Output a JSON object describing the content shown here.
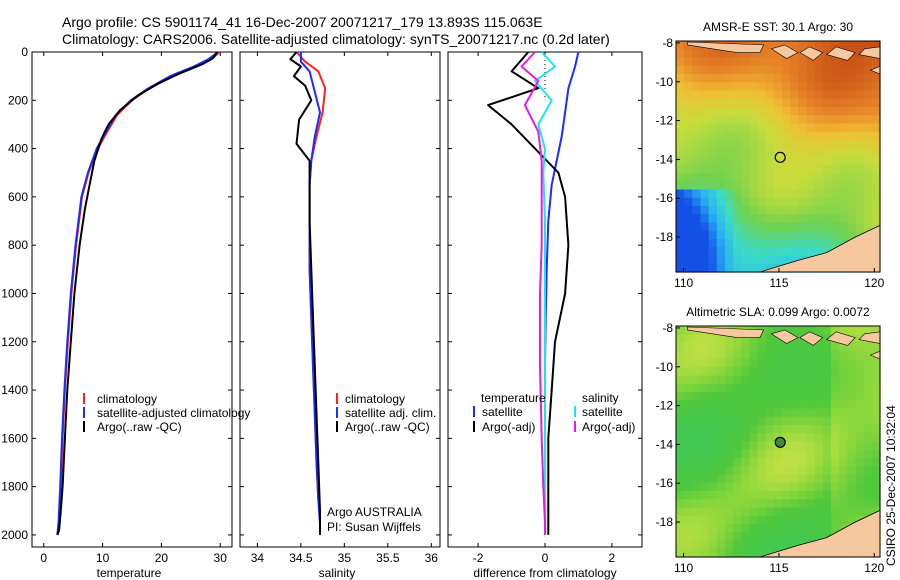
{
  "header": {
    "line1": "Argo profile: CS 5901174_41 16-Dec-2007 20071217_179 13.893S 115.063E",
    "line2": "Climatology: CARS2006. Satellite-adjusted climatology: synTS_20071217.nc (0.2d later)"
  },
  "colors": {
    "climatology": "#ff2020",
    "satellite": "#1a2cff",
    "argo": "#000000",
    "temp_satellite": "#1a2cff",
    "sal_satellite": "#19e6e6",
    "sal_argo": "#e619e6",
    "land": "#f5c8a0"
  },
  "chart_data": [
    {
      "type": "line",
      "name": "temperature profile",
      "xlabel": "temperature",
      "xlim": [
        -2,
        32
      ],
      "ylim": [
        2050,
        0
      ],
      "xticks": [
        "0",
        "10",
        "20",
        "30"
      ],
      "xtick_values": [
        0,
        10,
        20,
        30
      ],
      "yticks": [
        "0",
        "200",
        "400",
        "600",
        "800",
        "1000",
        "1200",
        "1400",
        "1600",
        "1800",
        "2000"
      ],
      "ytick_values": [
        0,
        200,
        400,
        600,
        800,
        1000,
        1200,
        1400,
        1600,
        1800,
        2000
      ],
      "legend": [
        "climatology",
        "satellite-adjusted climatology",
        "Argo(..raw -QC)"
      ],
      "series": [
        {
          "name": "climatology",
          "color": "#ff2020",
          "x": [
            29.9,
            28.5,
            26.0,
            22.0,
            18.0,
            15.0,
            12.5,
            10.8,
            9.2,
            7.6,
            6.5,
            5.5,
            4.7,
            4.1,
            3.6,
            3.2,
            2.9,
            2.6,
            2.4
          ],
          "y": [
            0,
            30,
            60,
            100,
            150,
            200,
            260,
            330,
            400,
            500,
            600,
            800,
            1000,
            1200,
            1400,
            1600,
            1800,
            1950,
            2000
          ]
        },
        {
          "name": "satellite",
          "color": "#1a2cff",
          "x": [
            29.6,
            28.0,
            25.5,
            21.5,
            17.8,
            14.8,
            12.3,
            10.6,
            9.0,
            7.5,
            6.4,
            5.4,
            4.6,
            4.0,
            3.5,
            3.1,
            2.8,
            2.5,
            2.3
          ],
          "y": [
            0,
            30,
            60,
            100,
            150,
            200,
            260,
            330,
            400,
            500,
            600,
            800,
            1000,
            1200,
            1400,
            1600,
            1800,
            1950,
            2000
          ]
        },
        {
          "name": "Argo",
          "color": "#000000",
          "x": [
            29.5,
            28.8,
            27.0,
            23.0,
            19.5,
            16.0,
            13.0,
            11.0,
            9.8,
            8.6,
            7.8,
            7.0,
            6.1,
            5.2,
            4.6,
            4.0,
            3.6,
            3.2,
            2.9,
            2.6,
            2.3
          ],
          "y": [
            0,
            25,
            50,
            90,
            130,
            180,
            240,
            300,
            360,
            450,
            550,
            650,
            800,
            1000,
            1200,
            1400,
            1600,
            1800,
            1900,
            1980,
            2000
          ]
        }
      ]
    },
    {
      "type": "line",
      "name": "salinity profile",
      "xlabel": "salinity",
      "xlim": [
        33.8,
        36.1
      ],
      "ylim": [
        2050,
        0
      ],
      "xticks": [
        "34",
        "34.5",
        "35",
        "35.5",
        "36"
      ],
      "xtick_values": [
        34,
        34.5,
        35,
        35.5,
        36
      ],
      "legend": [
        "climatology",
        "satellite adj. clim.",
        "Argo(..raw -QC)"
      ],
      "annotations": [
        "Argo AUSTRALIA",
        "PI: Susan Wijffels"
      ],
      "series": [
        {
          "name": "climatology",
          "color": "#ff2020",
          "x": [
            34.45,
            34.55,
            34.7,
            34.78,
            34.75,
            34.68,
            34.62,
            34.6,
            34.6,
            34.6,
            34.62,
            34.64,
            34.66,
            34.68,
            34.7,
            34.72,
            34.72
          ],
          "y": [
            0,
            40,
            80,
            150,
            250,
            350,
            450,
            550,
            700,
            900,
            1100,
            1300,
            1500,
            1700,
            1850,
            1950,
            2000
          ]
        },
        {
          "name": "satellite",
          "color": "#1a2cff",
          "x": [
            34.5,
            34.5,
            34.6,
            34.65,
            34.72,
            34.66,
            34.62,
            34.6,
            34.6,
            34.6,
            34.62,
            34.64,
            34.66,
            34.68,
            34.7,
            34.72,
            34.72
          ],
          "y": [
            0,
            40,
            80,
            150,
            250,
            350,
            450,
            550,
            700,
            900,
            1100,
            1300,
            1500,
            1700,
            1850,
            1950,
            2000
          ]
        },
        {
          "name": "Argo",
          "color": "#000000",
          "x": [
            34.45,
            34.38,
            34.5,
            34.42,
            34.55,
            34.62,
            34.48,
            34.45,
            34.6,
            34.6,
            34.6,
            34.62,
            34.64,
            34.66,
            34.68,
            34.7,
            34.72,
            34.72
          ],
          "y": [
            0,
            30,
            60,
            100,
            140,
            200,
            280,
            380,
            450,
            550,
            700,
            900,
            1100,
            1300,
            1500,
            1700,
            1900,
            2000
          ]
        }
      ]
    },
    {
      "type": "line",
      "name": "difference from climatology",
      "xlabel": "difference from climatology",
      "xlim": [
        -2.9,
        2.9
      ],
      "ylim": [
        2050,
        0
      ],
      "xticks": [
        "-2",
        "0",
        "2"
      ],
      "xtick_values": [
        -2,
        0,
        2
      ],
      "legend": {
        "temperature_title": "temperature",
        "salinity_title": "salinity",
        "temperature_items": [
          "satellite",
          "Argo(-adj)"
        ],
        "salinity_items": [
          "satellite",
          "Argo(-adj)"
        ]
      },
      "series": [
        {
          "name": "temperature satellite",
          "color": "#1a2cff",
          "x": [
            1.0,
            0.9,
            0.7,
            0.6,
            0.5,
            0.35,
            0.2,
            0.1,
            0.05,
            0.02,
            0.0,
            0.0,
            0.0,
            0.0,
            0.0,
            0.0
          ],
          "y": [
            0,
            60,
            150,
            250,
            350,
            450,
            550,
            700,
            900,
            1100,
            1300,
            1500,
            1700,
            1850,
            1950,
            2000
          ]
        },
        {
          "name": "temperature Argo",
          "color": "#000000",
          "x": [
            -0.5,
            -1.0,
            -0.2,
            -1.7,
            -1.0,
            -0.3,
            0.4,
            0.6,
            0.7,
            0.6,
            0.3,
            0.2,
            0.1,
            0.1,
            0.1,
            0.1
          ],
          "y": [
            0,
            80,
            150,
            220,
            300,
            400,
            500,
            600,
            800,
            1000,
            1200,
            1400,
            1600,
            1800,
            1950,
            2000
          ]
        },
        {
          "name": "salinity satellite",
          "color": "#19e6e6",
          "x": [
            -0.1,
            0.3,
            -0.3,
            0.2,
            -0.2,
            0.0,
            -0.05,
            0.0,
            0.0,
            0.0,
            0.0,
            0.0,
            0.0,
            0.0
          ],
          "y": [
            0,
            60,
            120,
            200,
            300,
            400,
            500,
            700,
            900,
            1200,
            1500,
            1800,
            1950,
            2000
          ]
        },
        {
          "name": "salinity Argo",
          "color": "#e619e6",
          "x": [
            -0.3,
            -0.7,
            -0.2,
            -0.6,
            -0.2,
            -0.1,
            -0.1,
            -0.1,
            -0.15,
            -0.15,
            -0.1,
            -0.05,
            0.0,
            0.0
          ],
          "y": [
            0,
            60,
            120,
            220,
            330,
            450,
            600,
            800,
            1000,
            1300,
            1600,
            1800,
            1950,
            2000
          ]
        }
      ]
    },
    {
      "type": "heatmap",
      "name": "AMSR-E SST map",
      "title": "AMSR-E SST: 30.1 Argo: 30",
      "xlim": [
        109.6,
        120.3
      ],
      "ylim": [
        -19.8,
        -7.9
      ],
      "xticks": [
        "110",
        "115",
        "120"
      ],
      "xtick_values": [
        110,
        115,
        120
      ],
      "yticks": [
        "-8",
        "-10",
        "-12",
        "-14",
        "-16",
        "-18"
      ],
      "ytick_values": [
        -8,
        -10,
        -12,
        -14,
        -16,
        -18
      ],
      "marker": {
        "lon": 115.063,
        "lat": -13.893
      }
    },
    {
      "type": "heatmap",
      "name": "Altimetric SLA map",
      "title": "Altimetric SLA: 0.099 Argo: 0.0072",
      "xlim": [
        109.6,
        120.3
      ],
      "ylim": [
        -19.8,
        -7.9
      ],
      "xticks": [
        "110",
        "115",
        "120"
      ],
      "xtick_values": [
        110,
        115,
        120
      ],
      "yticks": [
        "-8",
        "-10",
        "-12",
        "-14",
        "-16",
        "-18"
      ],
      "ytick_values": [
        -8,
        -10,
        -12,
        -14,
        -16,
        -18
      ],
      "marker": {
        "lon": 115.063,
        "lat": -13.893
      }
    }
  ],
  "footer": {
    "stamp": "CSIRO 25-Dec-2007 10:32:04"
  }
}
